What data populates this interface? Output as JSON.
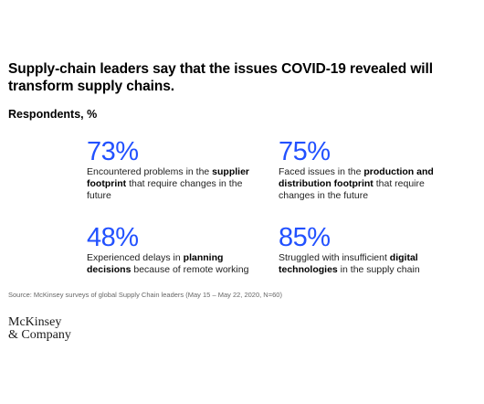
{
  "accent_color": "#2251ff",
  "header": {
    "title": "Supply-chain leaders say that the issues COVID-19 revealed will transform supply chains.",
    "subtitle": "Respondents, %"
  },
  "chart_data": {
    "type": "table",
    "unit": "%",
    "items": [
      {
        "value_label": "73%",
        "value": 73,
        "description": [
          {
            "text": "Encountered problems in the ",
            "bold": false
          },
          {
            "text": "supplier footprint",
            "bold": true
          },
          {
            "text": " that require changes in the future",
            "bold": false
          }
        ]
      },
      {
        "value_label": "75%",
        "value": 75,
        "description": [
          {
            "text": "Faced issues in the ",
            "bold": false
          },
          {
            "text": "production and distribution footprint",
            "bold": true
          },
          {
            "text": " that require changes in the future",
            "bold": false
          }
        ]
      },
      {
        "value_label": "48%",
        "value": 48,
        "description": [
          {
            "text": "Experienced delays in ",
            "bold": false
          },
          {
            "text": "planning decisions",
            "bold": true
          },
          {
            "text": " because of remote working",
            "bold": false
          }
        ]
      },
      {
        "value_label": "85%",
        "value": 85,
        "description": [
          {
            "text": "Struggled with insufficient ",
            "bold": false
          },
          {
            "text": "digital technologies",
            "bold": true
          },
          {
            "text": " in the supply chain",
            "bold": false
          }
        ]
      }
    ]
  },
  "footer": {
    "source": "Source: McKinsey surveys of global Supply Chain leaders (May 15 – May 22, 2020, N=60)",
    "logo_line1": "McKinsey",
    "logo_line2": "& Company"
  }
}
